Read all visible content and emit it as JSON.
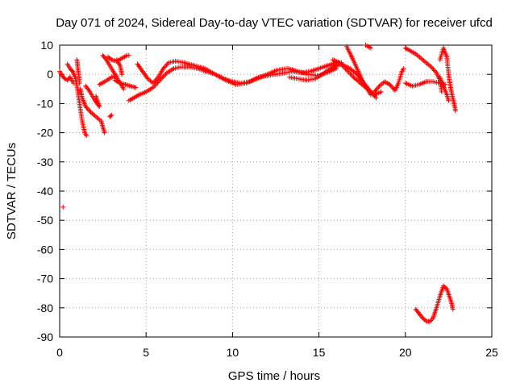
{
  "chart_data": {
    "type": "scatter",
    "title": "Day 071 of 2024, Sidereal Day-to-day VTEC variation (SDTVAR) for receiver ufcd",
    "xlabel": "GPS time / hours",
    "ylabel": "SDTVAR / TECUs",
    "xlim": [
      0,
      25
    ],
    "ylim": [
      -90,
      10
    ],
    "xticks": [
      0,
      5,
      10,
      15,
      20,
      25
    ],
    "yticks": [
      10,
      0,
      -10,
      -20,
      -30,
      -40,
      -50,
      -60,
      -70,
      -80,
      -90
    ],
    "grid": true,
    "marker": "+",
    "color": "#ff0000",
    "series": [
      {
        "name": "t0a",
        "points": [
          [
            0.0,
            1.0
          ],
          [
            0.15,
            -0.5
          ],
          [
            0.3,
            -1.5
          ],
          [
            0.45,
            -2.0
          ],
          [
            0.6,
            -1.0
          ],
          [
            0.8,
            -3.0
          ]
        ]
      },
      {
        "name": "t0b",
        "points": [
          [
            0.2,
            -45.5
          ]
        ]
      },
      {
        "name": "t1a",
        "points": [
          [
            0.45,
            3.5
          ],
          [
            0.6,
            2.0
          ],
          [
            0.75,
            1.0
          ],
          [
            0.9,
            -1.0
          ],
          [
            1.0,
            -4.0
          ],
          [
            1.1,
            -8.0
          ],
          [
            1.2,
            -12.0
          ],
          [
            1.3,
            -16.0
          ],
          [
            1.45,
            -20.0
          ],
          [
            1.55,
            -21.0
          ]
        ]
      },
      {
        "name": "t1b",
        "points": [
          [
            1.0,
            5.0
          ],
          [
            1.05,
            2.5
          ],
          [
            1.1,
            0.0
          ],
          [
            1.15,
            -3.0
          ]
        ]
      },
      {
        "name": "t1c",
        "points": [
          [
            1.2,
            -5.0
          ],
          [
            1.3,
            -8.0
          ],
          [
            1.5,
            -11.0
          ],
          [
            1.8,
            -13.0
          ],
          [
            2.1,
            -14.5
          ],
          [
            2.4,
            -16.0
          ],
          [
            2.55,
            -19.0
          ],
          [
            2.6,
            -20.0
          ]
        ]
      },
      {
        "name": "t2a",
        "points": [
          [
            1.5,
            -4.0
          ],
          [
            1.7,
            -5.5
          ],
          [
            1.9,
            -7.5
          ],
          [
            2.1,
            -9.5
          ],
          [
            2.3,
            -11.0
          ]
        ]
      },
      {
        "name": "t2b",
        "points": [
          [
            2.1,
            -7.5
          ],
          [
            2.2,
            -9.5
          ],
          [
            2.3,
            -11.0
          ]
        ]
      },
      {
        "name": "t2c",
        "points": [
          [
            2.3,
            -3.5
          ],
          [
            2.6,
            -2.5
          ],
          [
            3.0,
            -1.0
          ],
          [
            3.3,
            -0.5
          ]
        ]
      },
      {
        "name": "t2d",
        "points": [
          [
            2.9,
            -14.5
          ],
          [
            3.0,
            -14.0
          ]
        ]
      },
      {
        "name": "t2e",
        "points": [
          [
            2.8,
            6.0
          ],
          [
            3.0,
            5.0
          ],
          [
            3.3,
            4.5
          ],
          [
            3.6,
            5.5
          ],
          [
            3.9,
            6.5
          ],
          [
            4.0,
            6.5
          ]
        ]
      },
      {
        "name": "t3",
        "points": [
          [
            2.5,
            6.5
          ],
          [
            2.7,
            5.0
          ],
          [
            2.9,
            3.0
          ],
          [
            3.1,
            1.0
          ],
          [
            3.3,
            -1.0
          ],
          [
            3.5,
            -3.0
          ],
          [
            3.7,
            -5.0
          ]
        ]
      },
      {
        "name": "t3b",
        "points": [
          [
            3.3,
            5.0
          ],
          [
            3.5,
            3.0
          ],
          [
            3.6,
            0.0
          ]
        ]
      },
      {
        "name": "t4",
        "points": [
          [
            3.2,
            -2.0
          ],
          [
            3.5,
            -3.0
          ],
          [
            3.8,
            -3.5
          ],
          [
            4.1,
            -4.0
          ],
          [
            4.4,
            -4.5
          ]
        ]
      },
      {
        "name": "t5",
        "points": [
          [
            4.0,
            -9.0
          ],
          [
            4.3,
            -8.0
          ],
          [
            4.6,
            -7.0
          ],
          [
            5.0,
            -6.0
          ],
          [
            5.4,
            -4.5
          ],
          [
            5.8,
            -2.0
          ],
          [
            6.2,
            0.5
          ],
          [
            6.6,
            2.0
          ],
          [
            7.0,
            2.5
          ],
          [
            7.5,
            2.5
          ],
          [
            8.0,
            2.0
          ],
          [
            8.5,
            1.0
          ],
          [
            9.0,
            0.0
          ],
          [
            9.5,
            -1.5
          ],
          [
            10.0,
            -2.5
          ],
          [
            10.5,
            -3.0
          ],
          [
            11.0,
            -2.5
          ],
          [
            11.5,
            -1.0
          ],
          [
            12.0,
            -0.5
          ],
          [
            12.5,
            0.0
          ],
          [
            13.0,
            0.5
          ],
          [
            13.5,
            1.0
          ],
          [
            14.0,
            0.5
          ],
          [
            14.5,
            1.0
          ],
          [
            15.0,
            2.0
          ],
          [
            15.5,
            3.0
          ],
          [
            16.0,
            4.0
          ],
          [
            16.3,
            4.0
          ]
        ]
      },
      {
        "name": "t6",
        "points": [
          [
            4.5,
            3.5
          ],
          [
            4.8,
            1.0
          ],
          [
            5.1,
            -1.5
          ],
          [
            5.4,
            -3.0
          ],
          [
            5.7,
            -1.0
          ],
          [
            6.0,
            2.0
          ],
          [
            6.3,
            4.0
          ],
          [
            6.7,
            4.5
          ],
          [
            7.2,
            4.0
          ],
          [
            7.8,
            3.0
          ],
          [
            8.4,
            2.0
          ],
          [
            9.0,
            0.0
          ],
          [
            9.6,
            -2.0
          ],
          [
            10.2,
            -3.5
          ],
          [
            10.8,
            -3.0
          ],
          [
            11.4,
            -1.5
          ],
          [
            12.0,
            0.0
          ],
          [
            12.6,
            1.5
          ],
          [
            13.2,
            2.0
          ],
          [
            13.8,
            1.0
          ],
          [
            14.4,
            0.0
          ],
          [
            15.0,
            -0.5
          ],
          [
            15.6,
            1.0
          ],
          [
            16.0,
            2.0
          ]
        ]
      },
      {
        "name": "t7",
        "points": [
          [
            13.3,
            -1.0
          ],
          [
            13.8,
            -1.5
          ],
          [
            14.3,
            -2.0
          ],
          [
            14.8,
            -1.5
          ],
          [
            15.3,
            0.5
          ],
          [
            15.8,
            2.5
          ],
          [
            16.3,
            3.5
          ],
          [
            16.8,
            2.0
          ],
          [
            17.2,
            0.0
          ],
          [
            17.6,
            -3.0
          ],
          [
            18.0,
            -6.0
          ],
          [
            18.3,
            -8.0
          ]
        ]
      },
      {
        "name": "t8",
        "points": [
          [
            15.8,
            5.0
          ],
          [
            16.2,
            4.0
          ],
          [
            16.6,
            1.5
          ],
          [
            17.0,
            -1.0
          ],
          [
            17.4,
            -3.0
          ],
          [
            17.8,
            -5.0
          ],
          [
            18.2,
            -7.0
          ],
          [
            18.6,
            -6.0
          ]
        ]
      },
      {
        "name": "t9",
        "points": [
          [
            16.6,
            9.5
          ],
          [
            16.9,
            6.0
          ],
          [
            17.2,
            2.0
          ],
          [
            17.5,
            -2.0
          ],
          [
            17.8,
            -5.0
          ],
          [
            18.0,
            -7.0
          ]
        ]
      },
      {
        "name": "t10",
        "points": [
          [
            17.7,
            10.0
          ],
          [
            18.0,
            9.0
          ]
        ]
      },
      {
        "name": "t11",
        "points": [
          [
            18.2,
            -6.0
          ],
          [
            18.5,
            -4.0
          ],
          [
            18.8,
            -2.5
          ],
          [
            19.1,
            -3.5
          ],
          [
            19.4,
            -5.5
          ],
          [
            19.6,
            -3.0
          ],
          [
            19.8,
            1.0
          ],
          [
            19.9,
            2.0
          ]
        ]
      },
      {
        "name": "t12",
        "points": [
          [
            20.0,
            -3.0
          ],
          [
            20.4,
            -4.0
          ],
          [
            20.8,
            -3.5
          ],
          [
            21.2,
            -2.5
          ],
          [
            21.6,
            -2.5
          ],
          [
            22.0,
            -3.0
          ],
          [
            22.3,
            -3.5
          ]
        ]
      },
      {
        "name": "t13",
        "points": [
          [
            20.0,
            9.0
          ],
          [
            20.3,
            8.0
          ],
          [
            20.6,
            7.0
          ],
          [
            20.9,
            5.5
          ],
          [
            21.2,
            4.0
          ],
          [
            21.5,
            2.5
          ],
          [
            21.8,
            0.5
          ],
          [
            22.0,
            -2.0
          ],
          [
            22.1,
            -6.0
          ]
        ]
      },
      {
        "name": "t14",
        "points": [
          [
            22.0,
            5.0
          ],
          [
            22.2,
            9.0
          ],
          [
            22.4,
            6.0
          ],
          [
            22.5,
            0.0
          ],
          [
            22.6,
            -4.0
          ],
          [
            22.7,
            -7.0
          ],
          [
            22.8,
            -9.5
          ],
          [
            22.9,
            -12.5
          ]
        ]
      },
      {
        "name": "t15",
        "points": [
          [
            22.0,
            -1.0
          ],
          [
            22.2,
            -4.0
          ],
          [
            22.4,
            -7.0
          ],
          [
            22.5,
            -9.0
          ]
        ]
      },
      {
        "name": "t16",
        "points": [
          [
            20.6,
            -80.5
          ],
          [
            20.8,
            -82.0
          ],
          [
            21.0,
            -83.5
          ],
          [
            21.2,
            -84.5
          ],
          [
            21.4,
            -84.8
          ],
          [
            21.6,
            -83.5
          ],
          [
            21.8,
            -80.0
          ],
          [
            22.0,
            -76.0
          ],
          [
            22.2,
            -72.5
          ],
          [
            22.4,
            -73.5
          ],
          [
            22.6,
            -77.0
          ],
          [
            22.7,
            -79.0
          ],
          [
            22.75,
            -80.5
          ]
        ]
      }
    ]
  }
}
